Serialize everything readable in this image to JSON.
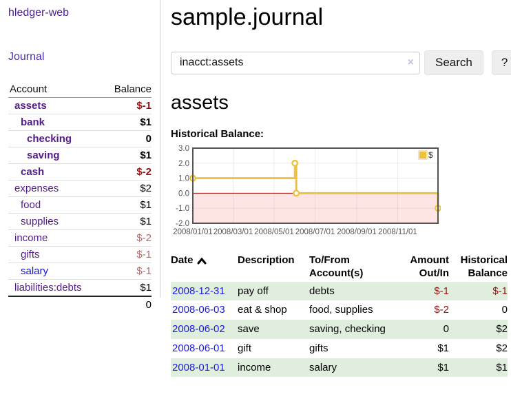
{
  "sidebar": {
    "app_title": "hledger-web",
    "nav": {
      "journal_label": "Journal"
    },
    "accounts_table": {
      "headers": {
        "account": "Account",
        "balance": "Balance"
      },
      "rows": [
        {
          "name": "assets",
          "balance": "$-1",
          "indent": 0,
          "bold": true,
          "neg": "strong"
        },
        {
          "name": "bank",
          "balance": "$1",
          "indent": 1,
          "bold": true
        },
        {
          "name": "checking",
          "balance": "0",
          "indent": 2,
          "bold": true
        },
        {
          "name": "saving",
          "balance": "$1",
          "indent": 2,
          "bold": true
        },
        {
          "name": "cash",
          "balance": "$-2",
          "indent": 1,
          "bold": true,
          "neg": "strong"
        },
        {
          "name": "expenses",
          "balance": "$2",
          "indent": 0
        },
        {
          "name": "food",
          "balance": "$1",
          "indent": 1
        },
        {
          "name": "supplies",
          "balance": "$1",
          "indent": 1
        },
        {
          "name": "income",
          "balance": "$-2",
          "indent": 0,
          "neg": "soft"
        },
        {
          "name": "gifts",
          "balance": "$-1",
          "indent": 1,
          "neg": "soft"
        },
        {
          "name": "salary",
          "balance": "$-1",
          "indent": 1,
          "neg": "soft",
          "link": "blue"
        },
        {
          "name": "liabilities:debts",
          "balance": "$1",
          "indent": 0
        }
      ],
      "total": "0"
    }
  },
  "header": {
    "title": "sample.journal"
  },
  "search": {
    "value": "inacct:assets",
    "clear_icon": "×",
    "search_label": "Search",
    "help_label": "?"
  },
  "account_page": {
    "heading": "assets",
    "chart_label": "Historical Balance:"
  },
  "chart_data": {
    "type": "line",
    "step": true,
    "title": "Historical Balance",
    "series": [
      {
        "name": "$",
        "color": "#edc240",
        "points": [
          [
            "2008-01-01",
            1
          ],
          [
            "2008-06-01",
            2
          ],
          [
            "2008-06-03",
            0
          ],
          [
            "2008-12-31",
            -1
          ]
        ]
      }
    ],
    "x_range": [
      "2008-01-01",
      "2008-12-31"
    ],
    "x_ticks": [
      {
        "date": "2008-01-01",
        "label": "2008/01/01"
      },
      {
        "date": "2008-03-01",
        "label": "2008/03/01"
      },
      {
        "date": "2008-05-01",
        "label": "2008/05/01"
      },
      {
        "date": "2008-07-01",
        "label": "2008/07/01"
      },
      {
        "date": "2008-09-01",
        "label": "2008/09/01"
      },
      {
        "date": "2008-11-01",
        "label": "2008/11/01"
      }
    ],
    "y_ticks": [
      3,
      2,
      1,
      0,
      -1,
      -2
    ],
    "y_tick_labels": [
      "3.0",
      "2.0",
      "1.0",
      "0.0",
      "-1.0",
      "-2.0"
    ],
    "ylim": [
      -2,
      3
    ],
    "grid": true,
    "legend_position": "top-right",
    "legend_label": "$",
    "negative_region_color": "#ffdddd",
    "zero_line_color": "#aa0000",
    "axis_text_color": "#545454",
    "border_color": "#545454"
  },
  "register_table": {
    "headers": {
      "date": "Date",
      "description": "Description",
      "accounts": "To/From Account(s)",
      "amount": "Amount Out/In",
      "balance": "Historical Balance"
    },
    "rows": [
      {
        "date": "2008-12-31",
        "description": "pay off",
        "accounts": "debts",
        "amount": "$-1",
        "amount_neg": true,
        "balance": "$-1",
        "balance_neg": true
      },
      {
        "date": "2008-06-03",
        "description": "eat & shop",
        "accounts": "food, supplies",
        "amount": "$-2",
        "amount_neg": true,
        "balance": "0",
        "balance_neg": false
      },
      {
        "date": "2008-06-02",
        "description": "save",
        "accounts": "saving, checking",
        "amount": "0",
        "amount_neg": false,
        "balance": "$2",
        "balance_neg": false
      },
      {
        "date": "2008-06-01",
        "description": "gift",
        "accounts": "gifts",
        "amount": "$1",
        "amount_neg": false,
        "balance": "$2",
        "balance_neg": false
      },
      {
        "date": "2008-01-01",
        "description": "income",
        "accounts": "salary",
        "amount": "$1",
        "amount_neg": false,
        "balance": "$1",
        "balance_neg": false
      }
    ]
  },
  "colors": {
    "stripe_green": "#e0eedd",
    "link_blue": "#1a1ae6",
    "link_purple": "#551a8b",
    "negative_strong": "#941111",
    "negative_soft": "#b56a6a",
    "chart_gold": "#edc240"
  }
}
